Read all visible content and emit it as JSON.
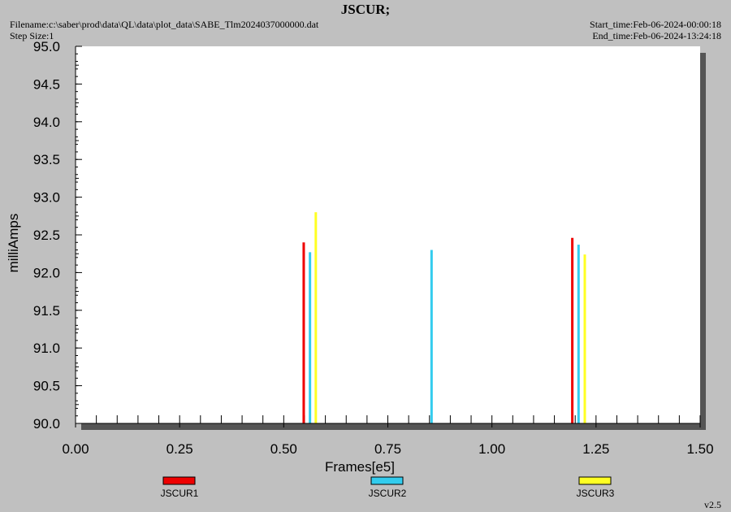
{
  "header": {
    "title": "JSCUR;",
    "filename": "Filename:c:\\saber\\prod\\data\\QL\\data\\plot_data\\SABE_Tlm2024037000000.dat",
    "step_size": "Step Size:1",
    "start_time": "Start_time:Feb-06-2024-00:00:18",
    "end_time": "End_time:Feb-06-2024-13:24:18"
  },
  "version": "v2.5",
  "colors": {
    "background": "#c0c0c0",
    "plot_area": "#ffffff",
    "JSCUR1": "#ee0000",
    "JSCUR2": "#33ccee",
    "JSCUR3": "#ffff22"
  },
  "chart_data": {
    "type": "bar",
    "title": "JSCUR;",
    "xlabel": "Frames[e5]",
    "ylabel": "milliAmps",
    "xlim": [
      0.0,
      1.5
    ],
    "ylim": [
      90.0,
      95.0
    ],
    "x_ticks": [
      "0.00",
      "0.25",
      "0.50",
      "0.75",
      "1.00",
      "1.25",
      "1.50"
    ],
    "y_ticks": [
      "90.0",
      "90.5",
      "91.0",
      "91.5",
      "92.0",
      "92.5",
      "93.0",
      "93.5",
      "94.0",
      "94.5",
      "95.0"
    ],
    "legend_position": "bottom",
    "grid": false,
    "series": [
      {
        "name": "JSCUR1",
        "color": "#ee0000",
        "points": [
          {
            "x": 0.548,
            "y": 92.4
          },
          {
            "x": 1.193,
            "y": 92.46
          }
        ]
      },
      {
        "name": "JSCUR2",
        "color": "#33ccee",
        "points": [
          {
            "x": 0.563,
            "y": 92.27
          },
          {
            "x": 0.855,
            "y": 92.3
          },
          {
            "x": 1.208,
            "y": 92.37
          }
        ]
      },
      {
        "name": "JSCUR3",
        "color": "#ffff22",
        "points": [
          {
            "x": 0.577,
            "y": 92.8
          },
          {
            "x": 1.223,
            "y": 92.24
          }
        ]
      }
    ]
  }
}
